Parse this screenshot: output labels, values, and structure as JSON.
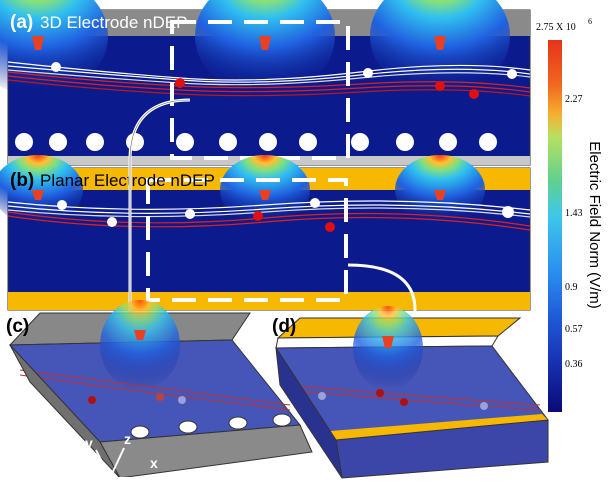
{
  "panels": [
    {
      "label": "(a)",
      "title": "3D Electrode nDEP"
    },
    {
      "label": "(b)",
      "title": "Planar Electrode nDEP"
    },
    {
      "label": "(c)"
    },
    {
      "label": "(d)"
    }
  ],
  "colorbar": {
    "title": "Electric Field Norm (V/m)",
    "max": {
      "label": "2.75 X 10",
      "exponent": "6"
    },
    "ticks": [
      "2.27",
      "1.43",
      "0.9",
      "0.57",
      "0.36"
    ]
  },
  "axes": {
    "y": "y",
    "z": "z",
    "x": "x"
  }
}
